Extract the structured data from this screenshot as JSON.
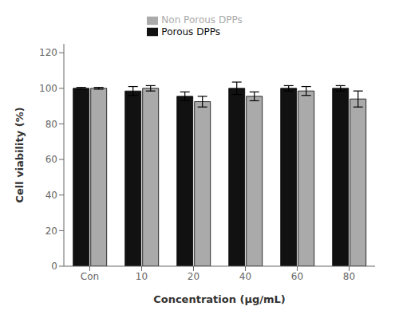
{
  "chart_data": {
    "type": "bar",
    "categories": [
      "Con",
      "10",
      "20",
      "40",
      "60",
      "80"
    ],
    "series": [
      {
        "name": "Porous DPPs",
        "color": "#111111",
        "values": [
          100.0,
          98.5,
          95.5,
          100.0,
          100.0,
          100.0
        ],
        "errors": [
          0.5,
          2.5,
          2.5,
          3.5,
          1.5,
          1.5
        ]
      },
      {
        "name": "Non Porous DPPs",
        "color": "#aaaaaa",
        "values": [
          100.0,
          100.0,
          92.5,
          95.5,
          98.5,
          94.0
        ],
        "errors": [
          0.5,
          1.5,
          3.0,
          2.5,
          2.5,
          4.5
        ]
      }
    ],
    "xlabel": "Concentration (μg/mL)",
    "ylabel": "Cell viability (%)",
    "ylim": [
      0,
      125
    ],
    "yticks": [
      0,
      20,
      40,
      60,
      80,
      100,
      120
    ],
    "legend": "top",
    "grid": false
  }
}
